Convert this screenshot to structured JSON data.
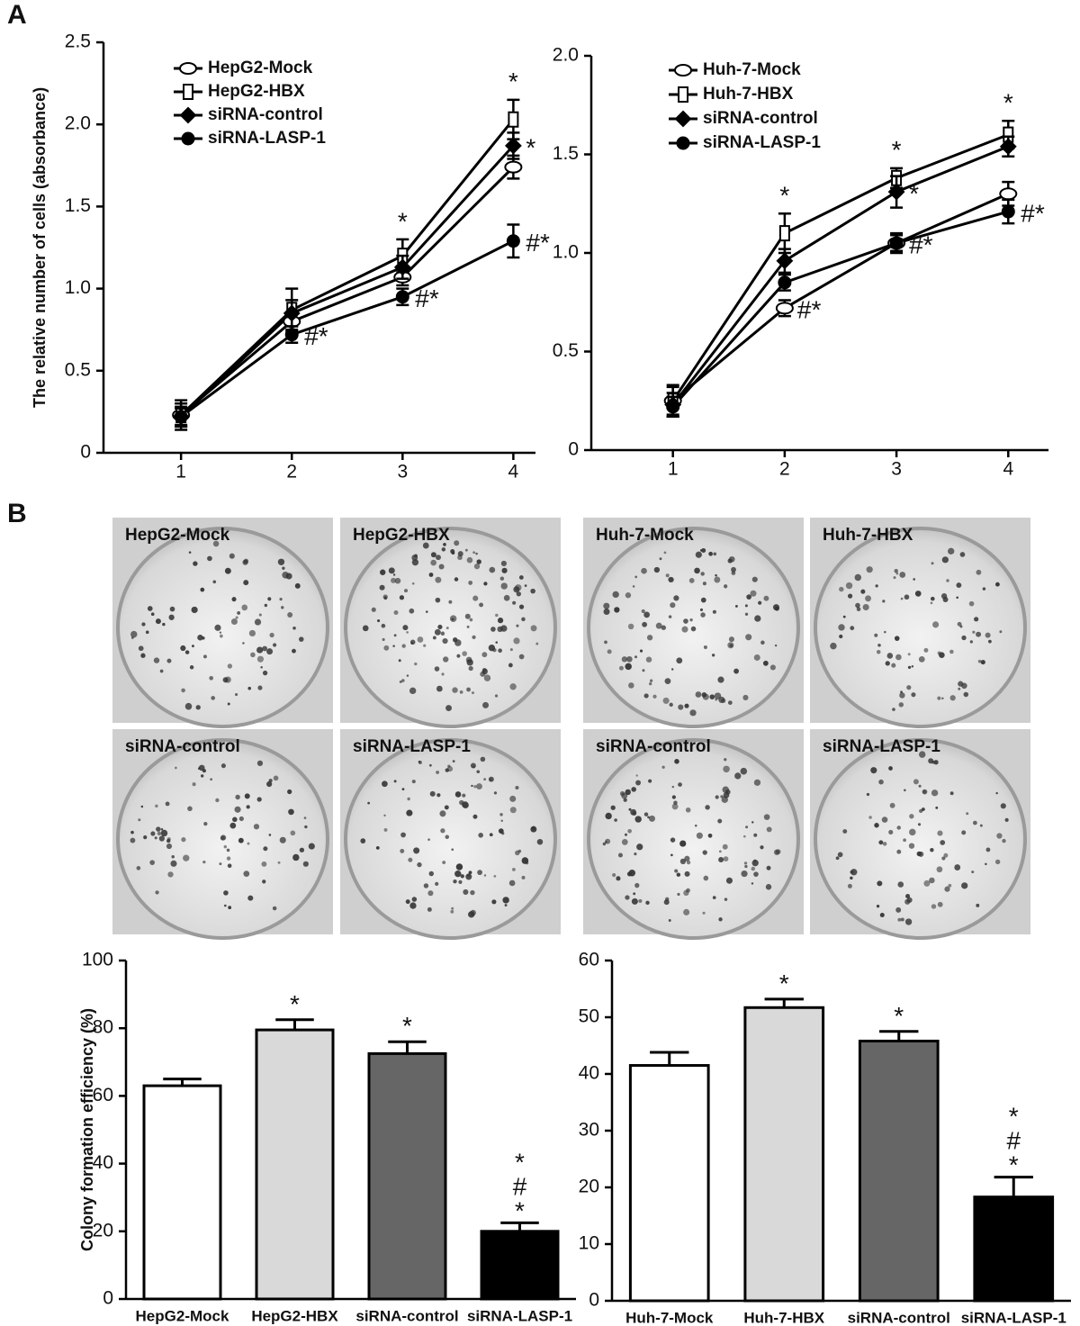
{
  "panels": [
    "A",
    "B"
  ],
  "images": [
    {
      "label": "HepG2-Mock"
    },
    {
      "label": "HepG2-HBX"
    },
    {
      "label": "siRNA-control"
    },
    {
      "label": "siRNA-LASP-1"
    },
    {
      "label": "Huh-7-Mock"
    },
    {
      "label": "Huh-7-HBX"
    },
    {
      "label": "siRNA-control"
    },
    {
      "label": "siRNA-LASP-1"
    }
  ],
  "chart_data": [
    {
      "type": "line",
      "ylabel": "The relative number of cells (absorbance)",
      "x": [
        1,
        2,
        3,
        4
      ],
      "xlim": [
        0.3,
        4.2
      ],
      "xticks": [
        1,
        2,
        3,
        4
      ],
      "ylim": [
        0,
        2.5
      ],
      "yticks": [
        0,
        0.5,
        {
          "value": 1,
          "label": "1.0"
        },
        1.5,
        {
          "value": 2,
          "label": "2.0"
        },
        2.5
      ],
      "series": [
        {
          "name": "HepG2-Mock",
          "color": "#000000",
          "marker": "open-circle",
          "values": [
            0.23,
            0.8,
            1.07,
            1.74
          ],
          "errors": [
            0.07,
            0.05,
            0.05,
            0.07
          ],
          "annotations": [
            null,
            null,
            null,
            null
          ]
        },
        {
          "name": "HepG2-HBX",
          "color": "#000000",
          "marker": "open-square",
          "values": [
            0.23,
            0.87,
            1.2,
            2.03
          ],
          "errors": [
            0.09,
            0.13,
            0.1,
            0.12
          ],
          "annotations": [
            null,
            null,
            "*",
            "*"
          ]
        },
        {
          "name": "siRNA-control",
          "color": "#000000",
          "marker": "diamond",
          "values": [
            0.22,
            0.85,
            1.13,
            1.87
          ],
          "errors": [
            0.06,
            0.08,
            0.07,
            0.08
          ],
          "annotations": [
            null,
            null,
            null,
            "*"
          ]
        },
        {
          "name": "siRNA-LASP-1",
          "color": "#000000",
          "marker": "circle",
          "values": [
            0.22,
            0.72,
            0.95,
            1.29
          ],
          "errors": [
            0.05,
            0.05,
            0.05,
            0.1
          ],
          "annotations": [
            null,
            "#*",
            "#*",
            "#*"
          ]
        }
      ]
    },
    {
      "type": "line",
      "x": [
        1,
        2,
        3,
        4
      ],
      "xlim": [
        0.27,
        4.36
      ],
      "xticks": [
        1,
        2,
        3,
        4
      ],
      "ylim": [
        0,
        2
      ],
      "yticks": [
        0,
        0.5,
        {
          "value": 1,
          "label": "1.0"
        },
        1.5,
        {
          "value": 2,
          "label": "2.0"
        }
      ],
      "series": [
        {
          "name": "Huh-7-Mock",
          "color": "#000000",
          "marker": "open-circle",
          "values": [
            0.25,
            0.72,
            1.05,
            1.3
          ],
          "errors": [
            0.07,
            0.04,
            0.04,
            0.06
          ],
          "annotations": [
            null,
            "#*",
            null,
            null
          ]
        },
        {
          "name": "Huh-7-HBX",
          "color": "#000000",
          "marker": "open-square",
          "values": [
            0.25,
            1.1,
            1.38,
            1.6
          ],
          "errors": [
            0.08,
            0.1,
            0.05,
            0.07
          ],
          "annotations": [
            null,
            "*",
            "*",
            "*"
          ]
        },
        {
          "name": "siRNA-control",
          "color": "#000000",
          "marker": "diamond",
          "values": [
            0.23,
            0.96,
            1.31,
            1.54
          ],
          "errors": [
            0.06,
            0.06,
            0.08,
            0.05
          ],
          "annotations": [
            null,
            null,
            "*",
            null
          ]
        },
        {
          "name": "siRNA-LASP-1",
          "color": "#000000",
          "marker": "circle",
          "values": [
            0.22,
            0.85,
            1.05,
            1.21
          ],
          "errors": [
            0.05,
            0.04,
            0.05,
            0.06
          ],
          "annotations": [
            null,
            null,
            "#*",
            "#*"
          ]
        }
      ]
    },
    {
      "type": "bar",
      "ylabel": "Colony formation efficiency (%)",
      "categories": [
        "HepG2-Mock",
        "HepG2-HBX",
        "siRNA-control",
        "siRNA-LASP-1"
      ],
      "values": [
        63,
        79.5,
        72.5,
        20
      ],
      "errors": [
        2,
        3,
        3.5,
        2.5
      ],
      "colors": [
        "#ffffff",
        "#d9d9d9",
        "#666666",
        "#000000"
      ],
      "annotations": [
        null,
        "*",
        "*",
        "*#*"
      ],
      "ylim": [
        0,
        100
      ],
      "yticks": [
        0,
        20,
        40,
        60,
        80,
        100
      ]
    },
    {
      "type": "bar",
      "categories": [
        "Huh-7-Mock",
        "Huh-7-HBX",
        "siRNA-control",
        "siRNA-LASP-1"
      ],
      "values": [
        41.5,
        51.7,
        45.8,
        18.3
      ],
      "errors": [
        2.3,
        1.5,
        1.7,
        3.5
      ],
      "colors": [
        "#ffffff",
        "#d9d9d9",
        "#666666",
        "#000000"
      ],
      "annotations": [
        null,
        "*",
        "*",
        "*#*"
      ],
      "ylim": [
        0,
        60
      ],
      "yticks": [
        0,
        10,
        20,
        30,
        40,
        50,
        60
      ]
    }
  ]
}
